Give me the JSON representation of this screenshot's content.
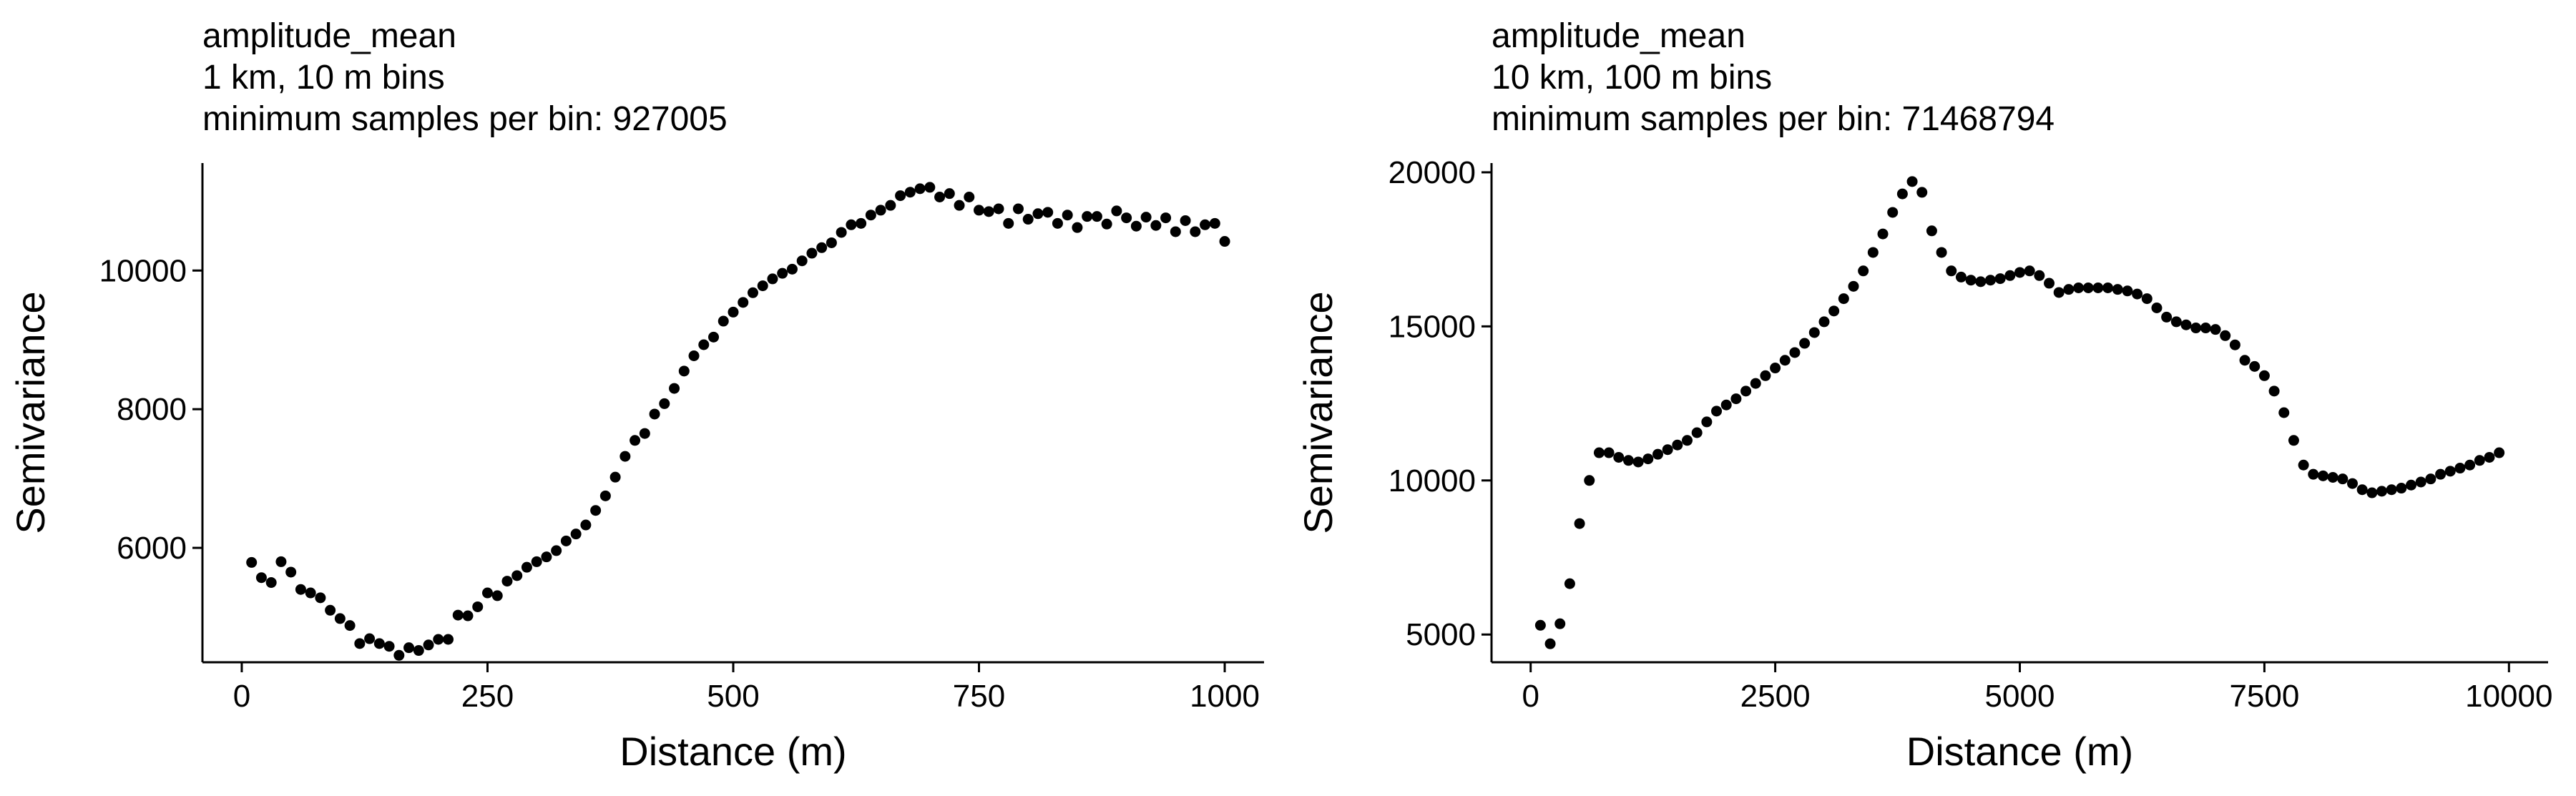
{
  "chart_data": [
    {
      "type": "scatter",
      "title": "amplitude_mean",
      "subtitle_lines": [
        "1 km, 10 m bins",
        "minimum samples per bin: 927005"
      ],
      "xlabel": "Distance (m)",
      "ylabel": "Semivariance",
      "xlim": [
        -40,
        1040
      ],
      "ylim": [
        4350,
        11550
      ],
      "xticks": [
        0,
        250,
        500,
        750,
        1000
      ],
      "xtick_labels": [
        "0",
        "250",
        "500",
        "750",
        "1000"
      ],
      "yticks": [
        6000,
        8000,
        10000
      ],
      "ytick_labels": [
        "6000",
        "8000",
        "10000"
      ],
      "grid": false,
      "color": "#000000",
      "x": [
        10,
        20,
        30,
        40,
        50,
        60,
        70,
        80,
        90,
        100,
        110,
        120,
        130,
        140,
        150,
        160,
        170,
        180,
        190,
        200,
        210,
        220,
        230,
        240,
        250,
        260,
        270,
        280,
        290,
        300,
        310,
        320,
        330,
        340,
        350,
        360,
        370,
        380,
        390,
        400,
        410,
        420,
        430,
        440,
        450,
        460,
        470,
        480,
        490,
        500,
        510,
        520,
        530,
        540,
        550,
        560,
        570,
        580,
        590,
        600,
        610,
        620,
        630,
        640,
        650,
        660,
        670,
        680,
        690,
        700,
        710,
        720,
        730,
        740,
        750,
        760,
        770,
        780,
        790,
        800,
        810,
        820,
        830,
        840,
        850,
        860,
        870,
        880,
        890,
        900,
        910,
        920,
        930,
        940,
        950,
        960,
        970,
        980,
        990,
        1000
      ],
      "y": [
        5790,
        5570,
        5500,
        5800,
        5650,
        5400,
        5350,
        5280,
        5100,
        4980,
        4880,
        4620,
        4690,
        4620,
        4580,
        4450,
        4560,
        4520,
        4600,
        4680,
        4680,
        5030,
        5020,
        5150,
        5350,
        5310,
        5520,
        5600,
        5720,
        5800,
        5870,
        5960,
        6100,
        6200,
        6330,
        6540,
        6750,
        7020,
        7320,
        7550,
        7650,
        7930,
        8080,
        8300,
        8550,
        8770,
        8930,
        9040,
        9270,
        9400,
        9540,
        9680,
        9780,
        9880,
        9960,
        10020,
        10140,
        10250,
        10330,
        10400,
        10550,
        10660,
        10680,
        10800,
        10870,
        10940,
        11080,
        11130,
        11180,
        11200,
        11060,
        11110,
        10940,
        11060,
        10870,
        10850,
        10890,
        10680,
        10890,
        10740,
        10820,
        10840,
        10680,
        10800,
        10620,
        10780,
        10780,
        10670,
        10860,
        10760,
        10640,
        10770,
        10650,
        10760,
        10560,
        10720,
        10560,
        10660,
        10680,
        10420
      ]
    },
    {
      "type": "scatter",
      "title": "amplitude_mean",
      "subtitle_lines": [
        "10 km, 100 m bins",
        "minimum samples per bin: 71468794"
      ],
      "xlabel": "Distance (m)",
      "ylabel": "Semivariance",
      "xlim": [
        -400,
        10400
      ],
      "ylim": [
        4100,
        20300
      ],
      "xticks": [
        0,
        2500,
        5000,
        7500,
        10000
      ],
      "xtick_labels": [
        "0",
        "2500",
        "5000",
        "7500",
        "10000"
      ],
      "yticks": [
        5000,
        10000,
        15000,
        20000
      ],
      "ytick_labels": [
        "5000",
        "10000",
        "15000",
        "20000"
      ],
      "grid": false,
      "color": "#000000",
      "x": [
        100,
        200,
        300,
        400,
        500,
        600,
        700,
        800,
        900,
        1000,
        1100,
        1200,
        1300,
        1400,
        1500,
        1600,
        1700,
        1800,
        1900,
        2000,
        2100,
        2200,
        2300,
        2400,
        2500,
        2600,
        2700,
        2800,
        2900,
        3000,
        3100,
        3200,
        3300,
        3400,
        3500,
        3600,
        3700,
        3800,
        3900,
        4000,
        4100,
        4200,
        4300,
        4400,
        4500,
        4600,
        4700,
        4800,
        4900,
        5000,
        5100,
        5200,
        5300,
        5400,
        5500,
        5600,
        5700,
        5800,
        5900,
        6000,
        6100,
        6200,
        6300,
        6400,
        6500,
        6600,
        6700,
        6800,
        6900,
        7000,
        7100,
        7200,
        7300,
        7400,
        7500,
        7600,
        7700,
        7800,
        7900,
        8000,
        8100,
        8200,
        8300,
        8400,
        8500,
        8600,
        8700,
        8800,
        8900,
        9000,
        9100,
        9200,
        9300,
        9400,
        9500,
        9600,
        9700,
        9800,
        9900
      ],
      "y": [
        5300,
        4700,
        5350,
        6650,
        8600,
        10000,
        10900,
        10900,
        10750,
        10650,
        10600,
        10700,
        10850,
        11000,
        11150,
        11300,
        11550,
        11900,
        12250,
        12450,
        12650,
        12900,
        13150,
        13400,
        13650,
        13900,
        14150,
        14450,
        14800,
        15150,
        15500,
        15900,
        16300,
        16800,
        17400,
        18000,
        18700,
        19300,
        19700,
        19350,
        18100,
        17400,
        16800,
        16600,
        16500,
        16450,
        16500,
        16550,
        16650,
        16750,
        16800,
        16650,
        16400,
        16100,
        16200,
        16250,
        16250,
        16250,
        16250,
        16200,
        16150,
        16050,
        15900,
        15600,
        15300,
        15150,
        15050,
        14950,
        14950,
        14900,
        14700,
        14400,
        13900,
        13700,
        13400,
        12900,
        12200,
        11300,
        10500,
        10200,
        10150,
        10100,
        10050,
        9900,
        9700,
        9600,
        9650,
        9700,
        9750,
        9850,
        9950,
        10050,
        10200,
        10300,
        10400,
        10500,
        10650,
        10750,
        10900
      ]
    }
  ]
}
